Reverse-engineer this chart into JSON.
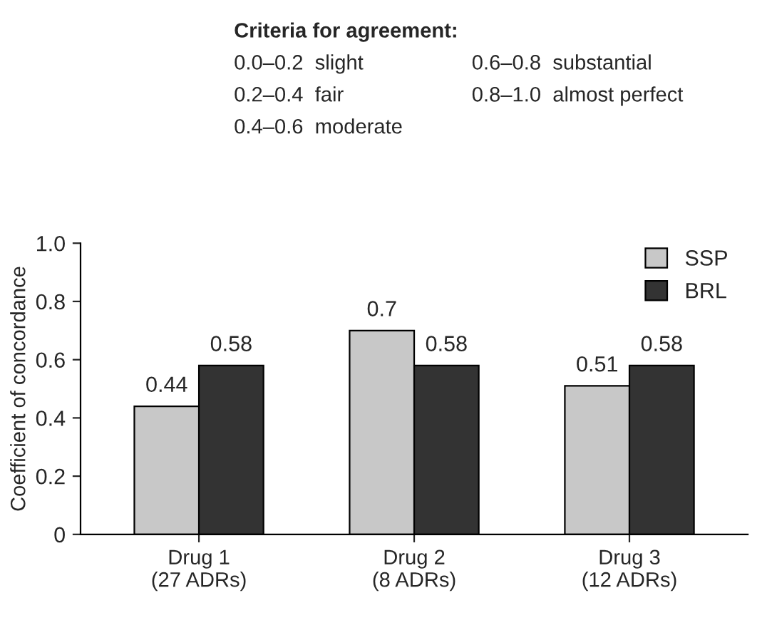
{
  "chart_data": {
    "type": "bar",
    "categories": [
      "Drug 1\n(27 ADRs)",
      "Drug 2\n(8 ADRs)",
      "Drug 3\n(12 ADRs)"
    ],
    "series": [
      {
        "name": "SSP",
        "color": "#c8c8c8",
        "values": [
          0.44,
          0.7,
          0.51
        ]
      },
      {
        "name": "BRL",
        "color": "#333333",
        "values": [
          0.58,
          0.58,
          0.58
        ]
      }
    ],
    "ylabel": "Coefficient of concordance",
    "ylim": [
      0,
      1
    ],
    "yticks": [
      0,
      0.2,
      0.4,
      0.6,
      0.8,
      {
        "value": 1,
        "label": "1.0"
      }
    ],
    "data_labels": true,
    "legend": "top right",
    "grid": false,
    "annotations": [
      "Criteria for agreement:",
      "0.0–0.2  slight",
      "0.2–0.4  fair",
      "0.4–0.6  moderate",
      "0.6–0.8  substantial",
      "0.8–1.0  almost perfect"
    ]
  }
}
